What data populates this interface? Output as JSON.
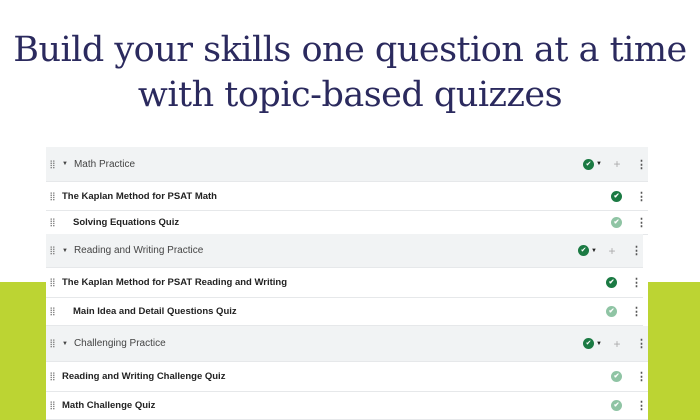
{
  "headline": "Build your skills one question at a time with topic-based quizzes",
  "colors": {
    "accent": "#bcd433",
    "heading": "#2b2a5e",
    "check": "#1b7a43"
  },
  "panels": [
    {
      "section": "Math Practice",
      "items": [
        {
          "label": "The Kaplan Method for PSAT Math",
          "indent": false,
          "status": "complete"
        },
        {
          "label": "Solving Equations Quiz",
          "indent": true,
          "status": "complete-light"
        }
      ]
    },
    {
      "section": "Reading and Writing Practice",
      "items": [
        {
          "label": "The Kaplan Method for PSAT Reading and Writing",
          "indent": false,
          "status": "complete"
        },
        {
          "label": "Main Idea and Detail Questions Quiz",
          "indent": true,
          "status": "complete-light"
        }
      ]
    },
    {
      "section": "Challenging Practice",
      "items": [
        {
          "label": "Reading and Writing Challenge Quiz",
          "indent": false,
          "status": "complete-light"
        },
        {
          "label": "Math Challenge Quiz",
          "indent": false,
          "status": "complete-light"
        }
      ]
    }
  ],
  "icons": {
    "check": "✔",
    "caret": "▼",
    "plus": "+",
    "kebab": "⋮"
  }
}
